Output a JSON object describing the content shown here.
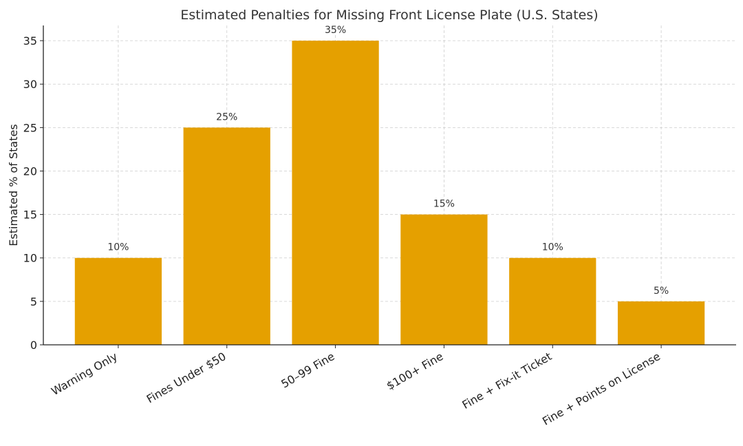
{
  "chart_data": {
    "type": "bar",
    "title": "Estimated Penalties for Missing Front License Plate (U.S. States)",
    "xlabel": "",
    "ylabel": "Estimated % of States",
    "categories": [
      "Warning Only",
      "Fines Under $50",
      "50–99 Fine",
      "$100+ Fine",
      "Fine + Fix-it Ticket",
      "Fine + Points on License"
    ],
    "values": [
      10,
      25,
      35,
      15,
      10,
      5
    ],
    "data_labels": [
      "10%",
      "25%",
      "35%",
      "15%",
      "10%",
      "5%"
    ],
    "ylim": [
      0,
      36.75
    ],
    "yticks": [
      0,
      5,
      10,
      15,
      20,
      25,
      30,
      35
    ],
    "grid": true,
    "bar_color": "#E5A000"
  }
}
